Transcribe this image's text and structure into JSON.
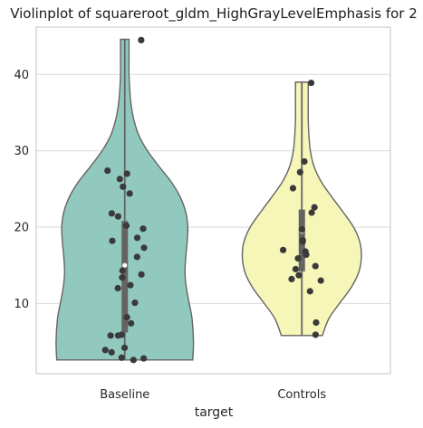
{
  "chart_data": {
    "type": "violin",
    "title": "Violinplot of squareroot_gldm_HighGrayLevelEmphasis for 2",
    "xlabel": "target",
    "ylabel": "",
    "categories": [
      "Baseline",
      "Controls"
    ],
    "ylim": [
      0.8,
      46.2
    ],
    "yticks": [
      10,
      20,
      30,
      40
    ],
    "grid": "horizontal",
    "colors": {
      "Baseline": "#92c9bf",
      "Controls": "#f6f6b8",
      "outline": "#646464",
      "box": "#646464",
      "points": "#3a3a3a",
      "grid": "#d9d9d9",
      "frame": "#cccccc"
    },
    "series": [
      {
        "category": "Baseline",
        "min": 2.6,
        "q1": 6.2,
        "median": 15.0,
        "q3": 20.8,
        "max": 44.6,
        "profile": [
          [
            2.6,
            0.96
          ],
          [
            5,
            0.97
          ],
          [
            8,
            0.95
          ],
          [
            10,
            0.91
          ],
          [
            12,
            0.87
          ],
          [
            14,
            0.85
          ],
          [
            16,
            0.86
          ],
          [
            18,
            0.88
          ],
          [
            20,
            0.89
          ],
          [
            22,
            0.86
          ],
          [
            24,
            0.78
          ],
          [
            26,
            0.65
          ],
          [
            28,
            0.48
          ],
          [
            30,
            0.32
          ],
          [
            32,
            0.2
          ],
          [
            34,
            0.13
          ],
          [
            36,
            0.09
          ],
          [
            38,
            0.07
          ],
          [
            40,
            0.06
          ],
          [
            42,
            0.06
          ],
          [
            44.6,
            0.06
          ]
        ],
        "points": [
          44.5,
          27.4,
          27.0,
          26.3,
          25.3,
          24.4,
          21.8,
          21.4,
          20.2,
          19.8,
          18.6,
          18.2,
          17.3,
          16.1,
          14.3,
          13.8,
          13.4,
          12.4,
          12.0,
          10.1,
          8.2,
          7.4,
          5.9,
          5.8,
          5.8,
          4.2,
          3.9,
          3.6,
          2.9,
          2.8,
          2.6
        ]
      },
      {
        "category": "Controls",
        "min": 5.8,
        "q1": 14.2,
        "median": 19.5,
        "q3": 22.3,
        "max": 39.0,
        "profile": [
          [
            5.8,
            0.29
          ],
          [
            8,
            0.38
          ],
          [
            10,
            0.53
          ],
          [
            12,
            0.69
          ],
          [
            14,
            0.8
          ],
          [
            16,
            0.84
          ],
          [
            18,
            0.82
          ],
          [
            20,
            0.73
          ],
          [
            22,
            0.58
          ],
          [
            24,
            0.42
          ],
          [
            26,
            0.27
          ],
          [
            28,
            0.17
          ],
          [
            30,
            0.12
          ],
          [
            32,
            0.1
          ],
          [
            34,
            0.09
          ],
          [
            36,
            0.09
          ],
          [
            39.0,
            0.09
          ]
        ],
        "points": [
          38.9,
          28.6,
          27.2,
          25.1,
          22.6,
          21.9,
          19.7,
          18.3,
          18.1,
          17.0,
          16.8,
          16.4,
          15.9,
          14.9,
          14.5,
          13.7,
          13.2,
          13.0,
          11.6,
          7.5,
          5.9
        ]
      }
    ]
  }
}
